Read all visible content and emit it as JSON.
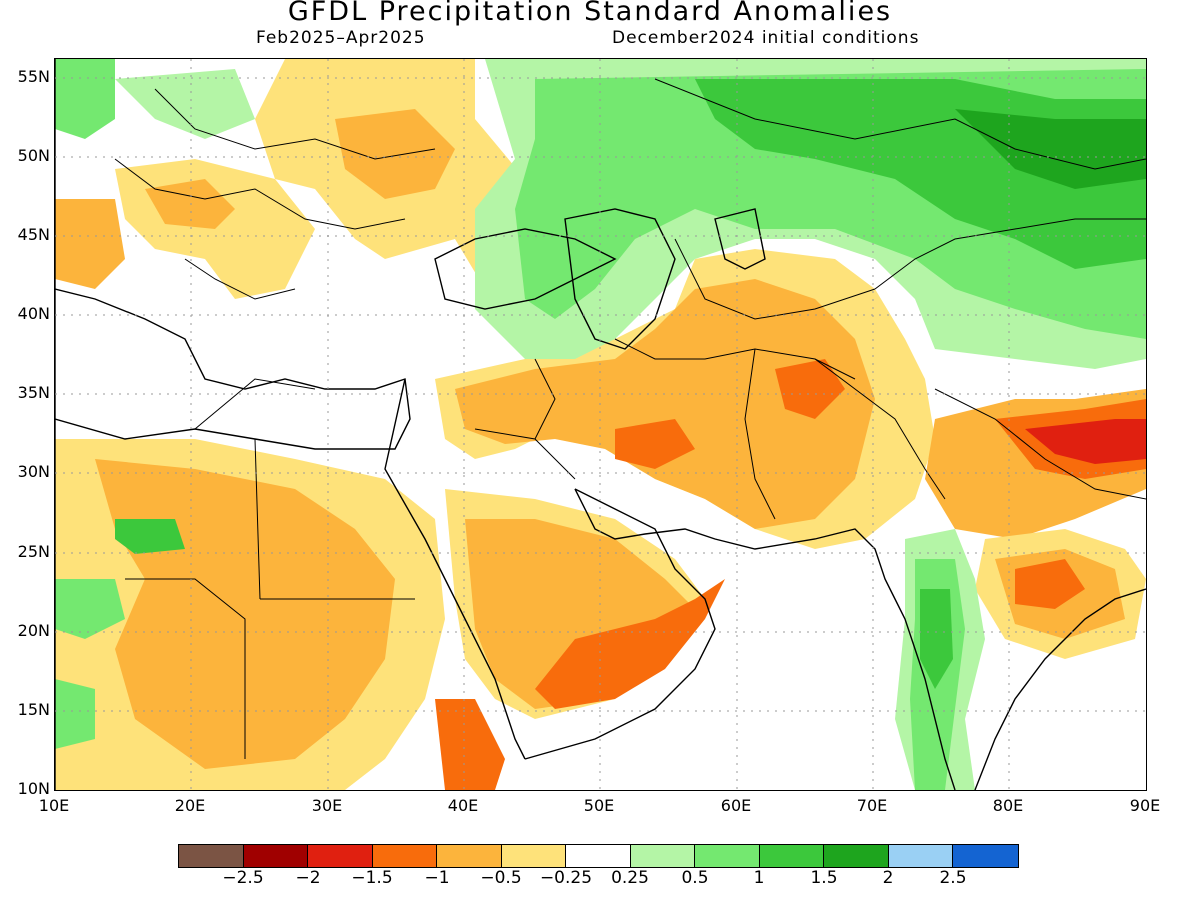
{
  "title": "GFDL Precipitation Standard Anomalies",
  "subtitle_left": "Feb2025–Apr2025",
  "subtitle_right": "December2024 initial conditions",
  "lat_labels": [
    "55N",
    "50N",
    "45N",
    "40N",
    "35N",
    "30N",
    "25N",
    "20N",
    "15N",
    "10N"
  ],
  "lon_labels": [
    "10E",
    "20E",
    "30E",
    "40E",
    "50E",
    "60E",
    "70E",
    "80E",
    "90E"
  ],
  "colorbar": {
    "colors": [
      "#7b5444",
      "#a00000",
      "#e02010",
      "#f86c0c",
      "#fcb43c",
      "#fee27a",
      "#ffffff",
      "#b4f5a6",
      "#74e870",
      "#3cc83c",
      "#1ea51e",
      "#9ad0f4",
      "#1464d2"
    ],
    "labels": [
      "−2.5",
      "−2",
      "−1.5",
      "−1",
      "−0.5",
      "−0.25",
      "0.25",
      "0.5",
      "1",
      "1.5",
      "2",
      "2.5"
    ]
  }
}
